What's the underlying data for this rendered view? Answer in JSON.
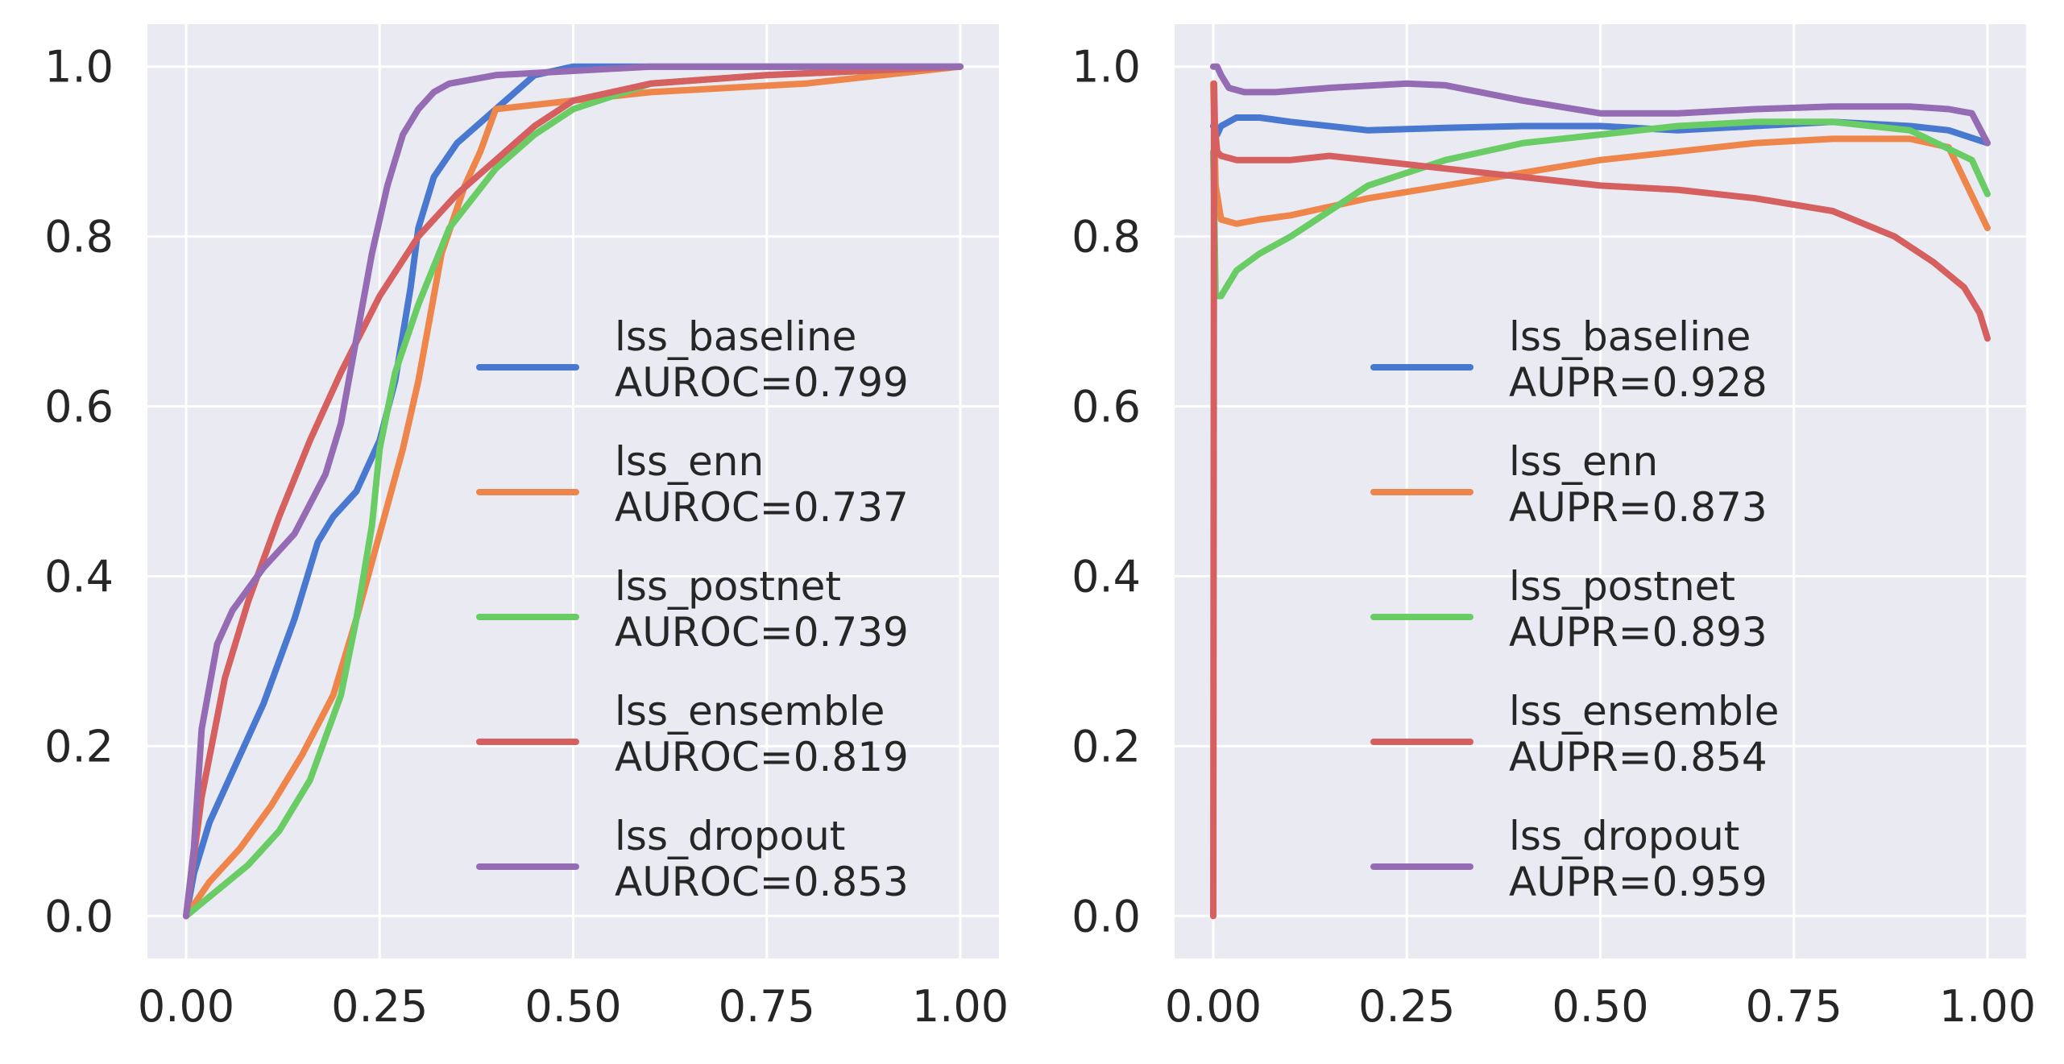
{
  "chart_data": [
    {
      "type": "line",
      "title": "",
      "xlabel": "",
      "ylabel": "",
      "xlim": [
        -0.05,
        1.05
      ],
      "ylim": [
        -0.05,
        1.05
      ],
      "xticks": [
        "0.00",
        "0.25",
        "0.50",
        "0.75",
        "1.00"
      ],
      "yticks": [
        "0.0",
        "0.2",
        "0.4",
        "0.6",
        "0.8",
        "1.0"
      ],
      "grid": true,
      "legend_position": "lower-right",
      "series": [
        {
          "name": "lss_baseline",
          "metric_label": "AUROC=0.799",
          "color": "#4878d0",
          "x": [
            0,
            0.01,
            0.03,
            0.06,
            0.1,
            0.14,
            0.17,
            0.19,
            0.22,
            0.25,
            0.27,
            0.29,
            0.3,
            0.32,
            0.35,
            0.4,
            0.45,
            0.5,
            0.55,
            1.0
          ],
          "y": [
            0,
            0.05,
            0.11,
            0.17,
            0.25,
            0.35,
            0.44,
            0.47,
            0.5,
            0.56,
            0.63,
            0.74,
            0.81,
            0.87,
            0.91,
            0.95,
            0.99,
            1.0,
            1.0,
            1.0
          ]
        },
        {
          "name": "lss_enn",
          "metric_label": "AUROC=0.737",
          "color": "#ee854a",
          "x": [
            0,
            0.03,
            0.07,
            0.11,
            0.15,
            0.19,
            0.22,
            0.25,
            0.28,
            0.3,
            0.33,
            0.36,
            0.38,
            0.4,
            0.5,
            0.6,
            0.8,
            1.0
          ],
          "y": [
            0,
            0.04,
            0.08,
            0.13,
            0.19,
            0.26,
            0.35,
            0.45,
            0.55,
            0.63,
            0.78,
            0.86,
            0.9,
            0.95,
            0.96,
            0.97,
            0.98,
            1.0
          ],
          "_comment": "none"
        },
        {
          "name": "lss_postnet",
          "metric_label": "AUROC=0.739",
          "color": "#6acc64",
          "x": [
            0,
            0.04,
            0.08,
            0.12,
            0.16,
            0.18,
            0.2,
            0.22,
            0.24,
            0.25,
            0.27,
            0.3,
            0.34,
            0.4,
            0.45,
            0.5,
            0.6,
            0.75,
            1.0
          ],
          "y": [
            0,
            0.03,
            0.06,
            0.1,
            0.16,
            0.21,
            0.26,
            0.35,
            0.46,
            0.55,
            0.64,
            0.72,
            0.81,
            0.88,
            0.92,
            0.95,
            0.98,
            0.99,
            1.0
          ]
        },
        {
          "name": "lss_ensemble",
          "metric_label": "AUROC=0.819",
          "color": "#d65f5f",
          "x": [
            0,
            0.02,
            0.05,
            0.08,
            0.12,
            0.16,
            0.2,
            0.25,
            0.3,
            0.35,
            0.4,
            0.45,
            0.5,
            0.6,
            0.75,
            1.0
          ],
          "y": [
            0,
            0.14,
            0.28,
            0.37,
            0.47,
            0.56,
            0.64,
            0.73,
            0.8,
            0.85,
            0.89,
            0.93,
            0.96,
            0.98,
            0.99,
            1.0
          ]
        },
        {
          "name": "lss_dropout",
          "metric_label": "AUROC=0.853",
          "color": "#956cb4",
          "x": [
            0,
            0.01,
            0.02,
            0.04,
            0.06,
            0.1,
            0.14,
            0.18,
            0.2,
            0.22,
            0.24,
            0.26,
            0.28,
            0.3,
            0.32,
            0.34,
            0.4,
            0.5,
            0.6,
            1.0
          ],
          "y": [
            0,
            0.08,
            0.22,
            0.32,
            0.36,
            0.41,
            0.45,
            0.52,
            0.58,
            0.68,
            0.78,
            0.86,
            0.92,
            0.95,
            0.97,
            0.98,
            0.99,
            0.995,
            1.0,
            1.0
          ]
        }
      ]
    },
    {
      "type": "line",
      "title": "",
      "xlabel": "",
      "ylabel": "",
      "xlim": [
        -0.05,
        1.05
      ],
      "ylim": [
        -0.05,
        1.05
      ],
      "xticks": [
        "0.00",
        "0.25",
        "0.50",
        "0.75",
        "1.00"
      ],
      "yticks": [
        "0.0",
        "0.2",
        "0.4",
        "0.6",
        "0.8",
        "1.0"
      ],
      "grid": true,
      "legend_position": "lower-right",
      "series": [
        {
          "name": "lss_baseline",
          "metric_label": "AUPR=0.928",
          "color": "#4878d0",
          "x": [
            0,
            0.005,
            0.01,
            0.03,
            0.06,
            0.1,
            0.2,
            0.3,
            0.4,
            0.5,
            0.6,
            0.7,
            0.8,
            0.9,
            0.95,
            1.0
          ],
          "y": [
            0.93,
            0.92,
            0.93,
            0.94,
            0.94,
            0.935,
            0.925,
            0.928,
            0.93,
            0.93,
            0.925,
            0.93,
            0.935,
            0.93,
            0.925,
            0.91
          ]
        },
        {
          "name": "lss_enn",
          "metric_label": "AUPR=0.873",
          "color": "#ee854a",
          "x": [
            0,
            0.003,
            0.01,
            0.03,
            0.06,
            0.1,
            0.2,
            0.3,
            0.4,
            0.5,
            0.6,
            0.7,
            0.8,
            0.9,
            0.95,
            1.0
          ],
          "y": [
            0.98,
            0.86,
            0.82,
            0.815,
            0.82,
            0.825,
            0.845,
            0.86,
            0.875,
            0.89,
            0.9,
            0.91,
            0.915,
            0.915,
            0.905,
            0.81
          ]
        },
        {
          "name": "lss_postnet",
          "metric_label": "AUPR=0.893",
          "color": "#6acc64",
          "x": [
            0,
            0.003,
            0.01,
            0.03,
            0.06,
            0.1,
            0.15,
            0.2,
            0.3,
            0.4,
            0.5,
            0.6,
            0.7,
            0.8,
            0.9,
            0.98,
            1.0
          ],
          "y": [
            0.9,
            0.73,
            0.73,
            0.76,
            0.78,
            0.8,
            0.83,
            0.86,
            0.89,
            0.91,
            0.92,
            0.93,
            0.935,
            0.935,
            0.925,
            0.89,
            0.85
          ]
        },
        {
          "name": "lss_ensemble",
          "metric_label": "AUPR=0.854",
          "color": "#d65f5f",
          "x": [
            0,
            0.001,
            0.002,
            0.005,
            0.01,
            0.03,
            0.06,
            0.1,
            0.15,
            0.2,
            0.3,
            0.4,
            0.5,
            0.6,
            0.7,
            0.8,
            0.88,
            0.93,
            0.97,
            0.99,
            1.0
          ],
          "y": [
            0,
            0.98,
            0.93,
            0.9,
            0.895,
            0.89,
            0.89,
            0.89,
            0.895,
            0.89,
            0.88,
            0.87,
            0.86,
            0.855,
            0.845,
            0.83,
            0.8,
            0.77,
            0.74,
            0.71,
            0.68
          ]
        },
        {
          "name": "lss_dropout",
          "metric_label": "AUPR=0.959",
          "color": "#956cb4",
          "x": [
            0,
            0.005,
            0.01,
            0.02,
            0.04,
            0.08,
            0.15,
            0.25,
            0.3,
            0.4,
            0.5,
            0.6,
            0.7,
            0.8,
            0.9,
            0.95,
            0.98,
            1.0
          ],
          "y": [
            1.0,
            1.0,
            0.99,
            0.975,
            0.97,
            0.97,
            0.975,
            0.98,
            0.978,
            0.96,
            0.945,
            0.945,
            0.95,
            0.953,
            0.953,
            0.95,
            0.945,
            0.91
          ]
        }
      ]
    }
  ]
}
